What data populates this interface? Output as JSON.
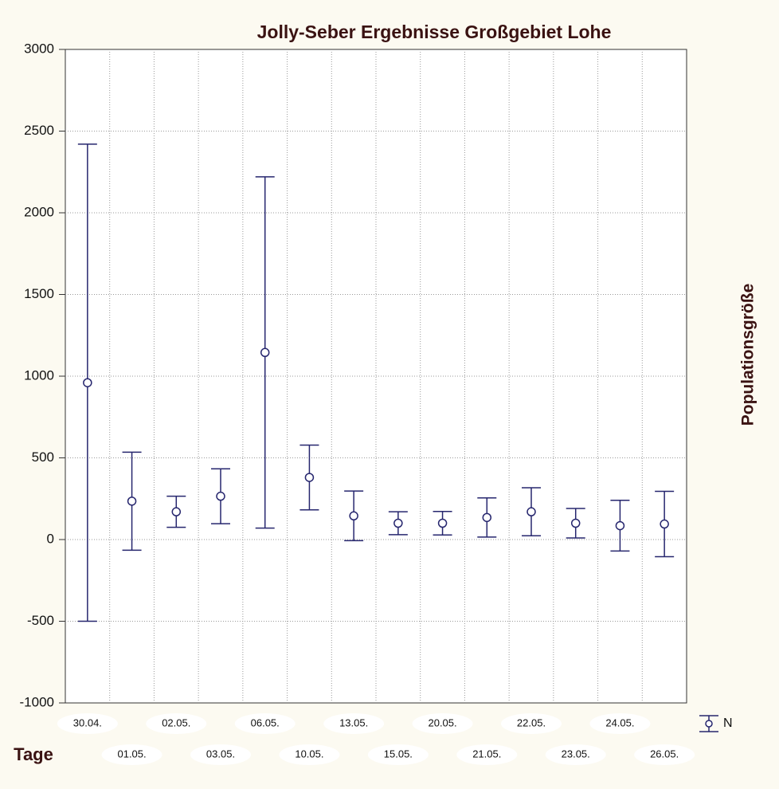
{
  "chart_data": {
    "type": "errorbar",
    "title": "Jolly-Seber Ergebnisse Großgebiet Lohe",
    "x_label": "Tage",
    "y_label": "Populationsgröße",
    "categories": [
      "30.04.",
      "01.05.",
      "02.05.",
      "03.05.",
      "06.05.",
      "10.05.",
      "13.05.",
      "15.05.",
      "20.05.",
      "21.05.",
      "22.05.",
      "23.05.",
      "24.05.",
      "26.05."
    ],
    "series": [
      {
        "name": "N",
        "color": "#26266e",
        "values": [
          960,
          235,
          170,
          265,
          1145,
          380,
          145,
          100,
          100,
          135,
          170,
          100,
          85,
          95
        ],
        "errors": [
          1460,
          300,
          95,
          168,
          1075,
          198,
          152,
          70,
          72,
          120,
          147,
          90,
          155,
          200
        ]
      }
    ],
    "ylim": [
      -1000,
      3000
    ],
    "yticks": [
      -1000,
      -500,
      0,
      500,
      1000,
      1500,
      2000,
      2500,
      3000
    ],
    "grid": true,
    "legend": "lower right"
  }
}
